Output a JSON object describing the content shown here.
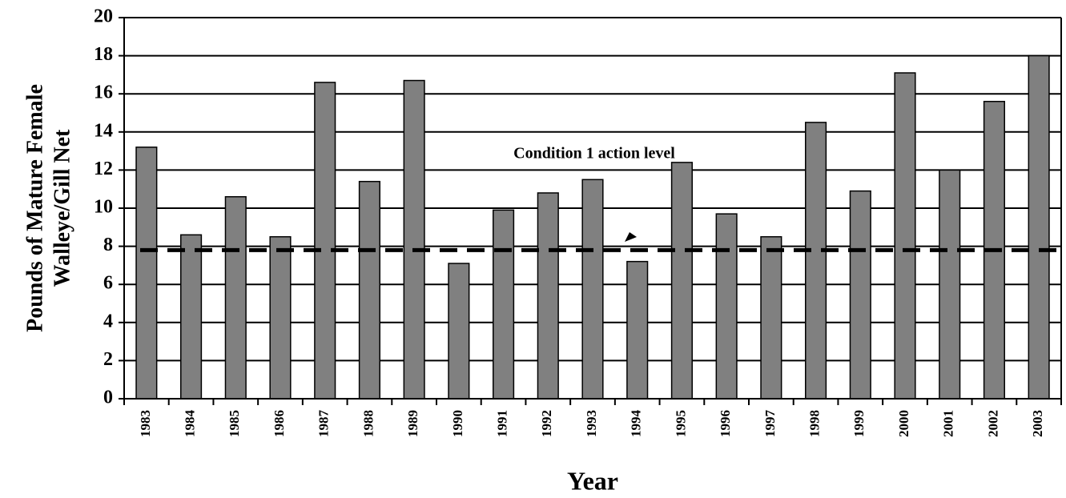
{
  "chart_data": {
    "type": "bar",
    "y_label": [
      "Pounds of Mature Female",
      "Walleye/Gill Net"
    ],
    "x_label": "Year",
    "categories": [
      "1983",
      "1984",
      "1985",
      "1986",
      "1987",
      "1988",
      "1989",
      "1990",
      "1991",
      "1992",
      "1993",
      "1994",
      "1995",
      "1996",
      "1997",
      "1998",
      "1999",
      "2000",
      "2001",
      "2002",
      "2003"
    ],
    "values": [
      13.2,
      8.6,
      10.6,
      8.5,
      16.6,
      11.4,
      16.7,
      7.1,
      9.9,
      10.8,
      11.5,
      7.2,
      12.4,
      9.7,
      8.5,
      14.5,
      10.9,
      17.1,
      12.0,
      15.6,
      18.0
    ],
    "color": "#808080",
    "ylim": [
      0,
      20
    ],
    "yticks": [
      0,
      2,
      4,
      6,
      8,
      10,
      12,
      14,
      16,
      18,
      20
    ],
    "grid": true,
    "reference_line": {
      "value": 7.8,
      "label": "Condition 1 action level"
    }
  }
}
